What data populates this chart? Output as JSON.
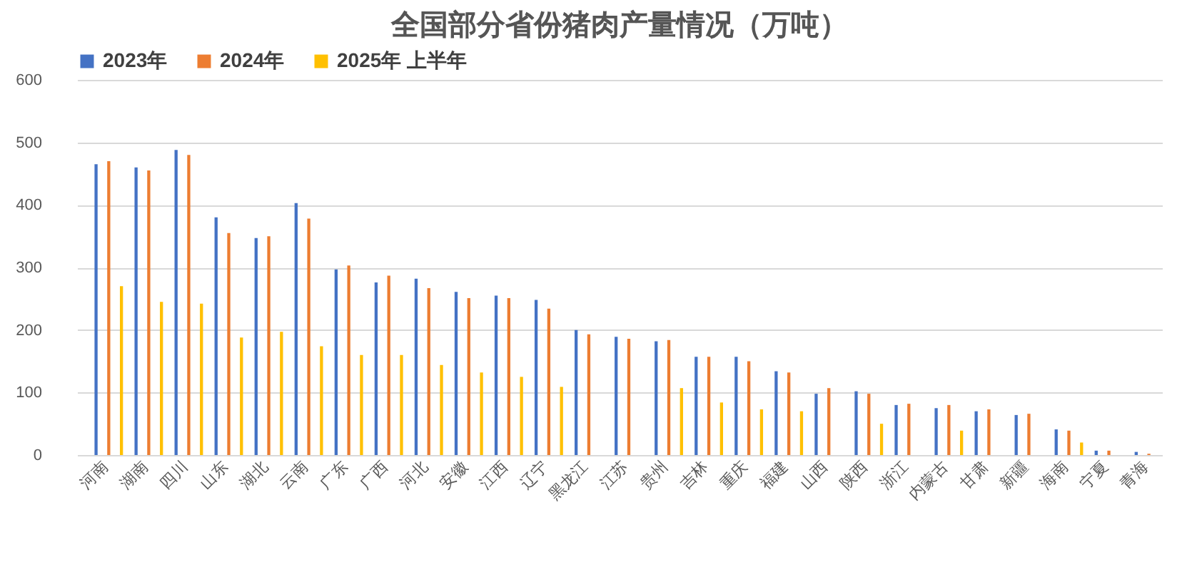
{
  "chart_data": {
    "type": "bar",
    "title": "全国部分省份猪肉产量情况（万吨）",
    "categories": [
      "河南",
      "湖南",
      "四川",
      "山东",
      "湖北",
      "云南",
      "广东",
      "广西",
      "河北",
      "安徽",
      "江西",
      "辽宁",
      "黑龙江",
      "江苏",
      "贵州",
      "吉林",
      "重庆",
      "福建",
      "山西",
      "陕西",
      "浙江",
      "内蒙古",
      "甘肃",
      "新疆",
      "海南",
      "宁夏",
      "青海"
    ],
    "series": [
      {
        "name": "2023年",
        "color": "#4472c4",
        "values": [
          465,
          460,
          488,
          380,
          347,
          403,
          297,
          276,
          282,
          261,
          255,
          248,
          200,
          189,
          182,
          157,
          157,
          134,
          98,
          102,
          80,
          75,
          70,
          64,
          41,
          7,
          5
        ]
      },
      {
        "name": "2024年",
        "color": "#ed7d31",
        "values": [
          470,
          455,
          480,
          355,
          350,
          378,
          303,
          287,
          267,
          251,
          251,
          234,
          193,
          186,
          184,
          157,
          150,
          132,
          107,
          98,
          82,
          80,
          73,
          66,
          39,
          7,
          2
        ]
      },
      {
        "name": "2025年  上半年",
        "color": "#ffc000",
        "values": [
          270,
          245,
          242,
          188,
          197,
          174,
          160,
          160,
          144,
          132,
          125,
          109,
          null,
          null,
          107,
          84,
          73,
          70,
          null,
          50,
          null,
          39,
          null,
          null,
          20,
          null,
          null
        ]
      }
    ],
    "ylim": [
      0,
      600
    ],
    "yticks": [
      0,
      100,
      200,
      300,
      400,
      500,
      600
    ],
    "grid": "y",
    "legend": "top"
  }
}
